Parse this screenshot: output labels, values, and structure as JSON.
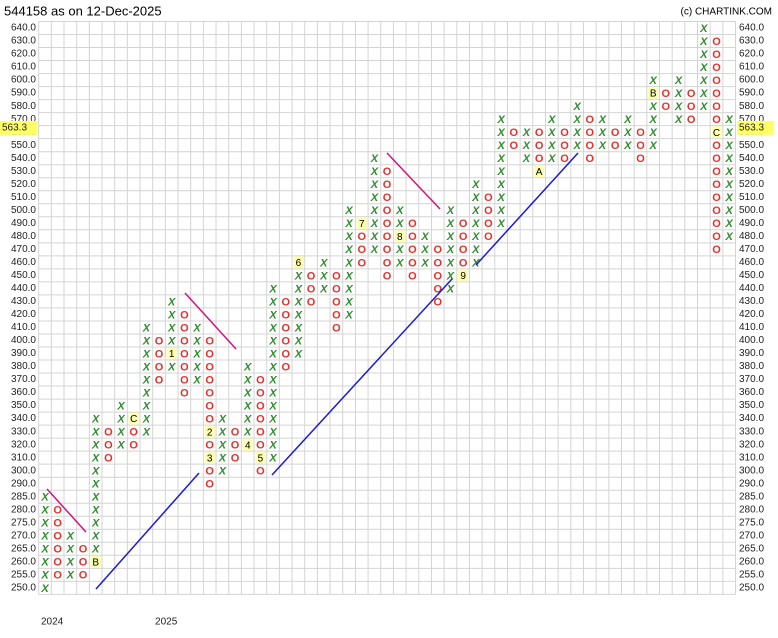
{
  "chart_data": {
    "type": "point-and-figure",
    "title": "544158 as on 12-Dec-2025",
    "source": "(c) CHARTINK.COM",
    "x_color": "#2e8b2e",
    "o_color": "#e8302a",
    "grid": true,
    "last": {
      "value": 563.3,
      "label": "563.3"
    },
    "yticks": [
      {
        "value": 640,
        "label": "640.0"
      },
      {
        "value": 630,
        "label": "630.0"
      },
      {
        "value": 620,
        "label": "620.0"
      },
      {
        "value": 610,
        "label": "610.0"
      },
      {
        "value": 600,
        "label": "600.0"
      },
      {
        "value": 590,
        "label": "590.0"
      },
      {
        "value": 580,
        "label": "580.0"
      },
      {
        "value": 570,
        "label": "570.0"
      },
      {
        "value": 560,
        "label": "560.0"
      },
      {
        "value": 550,
        "label": "550.0"
      },
      {
        "value": 540,
        "label": "540.0"
      },
      {
        "value": 530,
        "label": "530.0"
      },
      {
        "value": 520,
        "label": "520.0"
      },
      {
        "value": 510,
        "label": "510.0"
      },
      {
        "value": 500,
        "label": "500.0"
      },
      {
        "value": 490,
        "label": "490.0"
      },
      {
        "value": 480,
        "label": "480.0"
      },
      {
        "value": 470,
        "label": "470.0"
      },
      {
        "value": 460,
        "label": "460.0"
      },
      {
        "value": 450,
        "label": "450.0"
      },
      {
        "value": 440,
        "label": "440.0"
      },
      {
        "value": 430,
        "label": "430.0"
      },
      {
        "value": 420,
        "label": "420.0"
      },
      {
        "value": 410,
        "label": "410.0"
      },
      {
        "value": 400,
        "label": "400.0"
      },
      {
        "value": 390,
        "label": "390.0"
      },
      {
        "value": 380,
        "label": "380.0"
      },
      {
        "value": 370,
        "label": "370.0"
      },
      {
        "value": 360,
        "label": "360.0"
      },
      {
        "value": 350,
        "label": "350.0"
      },
      {
        "value": 340,
        "label": "340.0"
      },
      {
        "value": 330,
        "label": "330.0"
      },
      {
        "value": 320,
        "label": "320.0"
      },
      {
        "value": 310,
        "label": "310.0"
      },
      {
        "value": 300,
        "label": "300.0"
      },
      {
        "value": 290,
        "label": "290.0"
      },
      {
        "value": 285,
        "label": "285.0"
      },
      {
        "value": 280,
        "label": "280.0"
      },
      {
        "value": 275,
        "label": "275.0"
      },
      {
        "value": 270,
        "label": "270.0"
      },
      {
        "value": 265,
        "label": "265.0"
      },
      {
        "value": 260,
        "label": "260.0"
      },
      {
        "value": 255,
        "label": "255.0"
      },
      {
        "value": 250,
        "label": "250.0"
      }
    ],
    "columns": [
      {
        "box": "X",
        "from": 250,
        "to": 285,
        "x_label": "2024"
      },
      {
        "box": "O",
        "from": 255,
        "to": 280
      },
      {
        "box": "X",
        "from": 255,
        "to": 270
      },
      {
        "box": "O",
        "from": 255,
        "to": 265
      },
      {
        "box": "X",
        "from": 260,
        "to": 340,
        "markers": [
          {
            "price": 260,
            "label": "B"
          }
        ]
      },
      {
        "box": "O",
        "from": 310,
        "to": 330
      },
      {
        "box": "X",
        "from": 320,
        "to": 350
      },
      {
        "box": "O",
        "from": 320,
        "to": 340,
        "markers": [
          {
            "price": 340,
            "label": "C"
          }
        ]
      },
      {
        "box": "X",
        "from": 330,
        "to": 410
      },
      {
        "box": "O",
        "from": 370,
        "to": 400,
        "x_label": "2025"
      },
      {
        "box": "X",
        "from": 380,
        "to": 430,
        "markers": [
          {
            "price": 390,
            "label": "1"
          }
        ]
      },
      {
        "box": "O",
        "from": 360,
        "to": 420
      },
      {
        "box": "X",
        "from": 370,
        "to": 410
      },
      {
        "box": "O",
        "from": 290,
        "to": 400,
        "markers": [
          {
            "price": 330,
            "label": "2"
          },
          {
            "price": 310,
            "label": "3"
          }
        ]
      },
      {
        "box": "X",
        "from": 300,
        "to": 340
      },
      {
        "box": "O",
        "from": 310,
        "to": 330
      },
      {
        "box": "X",
        "from": 320,
        "to": 380,
        "markers": [
          {
            "price": 320,
            "label": "4"
          }
        ]
      },
      {
        "box": "O",
        "from": 300,
        "to": 370,
        "markers": [
          {
            "price": 310,
            "label": "5"
          }
        ]
      },
      {
        "box": "X",
        "from": 310,
        "to": 440
      },
      {
        "box": "O",
        "from": 380,
        "to": 430
      },
      {
        "box": "X",
        "from": 390,
        "to": 460,
        "markers": [
          {
            "price": 460,
            "label": "6"
          }
        ]
      },
      {
        "box": "O",
        "from": 430,
        "to": 450
      },
      {
        "box": "X",
        "from": 440,
        "to": 460
      },
      {
        "box": "O",
        "from": 410,
        "to": 450
      },
      {
        "box": "X",
        "from": 420,
        "to": 500
      },
      {
        "box": "O",
        "from": 460,
        "to": 490,
        "markers": [
          {
            "price": 490,
            "label": "7"
          }
        ]
      },
      {
        "box": "X",
        "from": 470,
        "to": 540
      },
      {
        "box": "O",
        "from": 450,
        "to": 530
      },
      {
        "box": "X",
        "from": 460,
        "to": 500,
        "markers": [
          {
            "price": 480,
            "label": "8"
          }
        ]
      },
      {
        "box": "O",
        "from": 450,
        "to": 490
      },
      {
        "box": "X",
        "from": 460,
        "to": 480
      },
      {
        "box": "O",
        "from": 430,
        "to": 470
      },
      {
        "box": "X",
        "from": 440,
        "to": 500
      },
      {
        "box": "O",
        "from": 450,
        "to": 490,
        "markers": [
          {
            "price": 450,
            "label": "9"
          }
        ]
      },
      {
        "box": "X",
        "from": 460,
        "to": 520
      },
      {
        "box": "O",
        "from": 480,
        "to": 510
      },
      {
        "box": "X",
        "from": 490,
        "to": 570
      },
      {
        "box": "O",
        "from": 550,
        "to": 560
      },
      {
        "box": "X",
        "from": 540,
        "to": 560
      },
      {
        "box": "O",
        "from": 530,
        "to": 560,
        "markers": [
          {
            "price": 530,
            "label": "A"
          }
        ]
      },
      {
        "box": "X",
        "from": 540,
        "to": 570
      },
      {
        "box": "O",
        "from": 540,
        "to": 560
      },
      {
        "box": "X",
        "from": 550,
        "to": 580
      },
      {
        "box": "O",
        "from": 540,
        "to": 570
      },
      {
        "box": "X",
        "from": 550,
        "to": 570
      },
      {
        "box": "O",
        "from": 550,
        "to": 560
      },
      {
        "box": "X",
        "from": 550,
        "to": 570
      },
      {
        "box": "O",
        "from": 540,
        "to": 560
      },
      {
        "box": "X",
        "from": 550,
        "to": 600,
        "markers": [
          {
            "price": 590,
            "label": "B"
          }
        ]
      },
      {
        "box": "O",
        "from": 580,
        "to": 590
      },
      {
        "box": "X",
        "from": 570,
        "to": 600
      },
      {
        "box": "O",
        "from": 570,
        "to": 590
      },
      {
        "box": "X",
        "from": 580,
        "to": 640
      },
      {
        "box": "O",
        "from": 470,
        "to": 630,
        "markers": [
          {
            "price": 560,
            "label": "C"
          }
        ]
      },
      {
        "box": "X",
        "from": 480,
        "to": 570
      }
    ]
  }
}
